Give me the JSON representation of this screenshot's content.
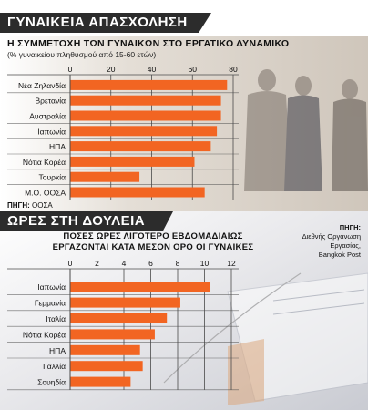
{
  "colors": {
    "bar": "#f26522",
    "banner": "#2c2c2c",
    "grid": "#4a4a4a",
    "text": "#111111"
  },
  "section1": {
    "banner": "ΓΥΝΑΙΚΕΙΑ ΑΠΑΣΧΟΛΗΣΗ",
    "title": "Η ΣΥΜΜΕΤΟΧΗ ΤΩΝ ΓΥΝΑΙΚΩΝ ΣΤΟ ΕΡΓΑΤΙΚΟ ΔΥΝΑΜΙΚΟ",
    "subtitle": "(% γυναικείου πληθυσμού από 15-60 ετών)",
    "source_label": "ΠΗΓΗ:",
    "source_text": " ΟΟΣΑ"
  },
  "section2": {
    "banner": "ΩΡΕΣ ΣΤΗ ΔΟΥΛΕΙΑ",
    "title_line1": "ΠΟΣΕΣ ΩΡΕΣ ΛΙΓΟΤΕΡΟ ΕΒΔΟΜΑΔΙΑΙΩΣ",
    "title_line2": "ΕΡΓΑΖΟΝΤΑΙ ΚΑΤΑ ΜΕΣΟΝ ΟΡΟ ΟΙ ΓΥΝΑΙΚΕΣ",
    "source_label": "ΠΗΓΗ:",
    "source_line1": "Διεθνής Οργάνωση Εργασίας,",
    "source_line2": "Bangkok Post"
  },
  "chart_data": [
    {
      "type": "bar",
      "orientation": "horizontal",
      "categories": [
        "Νέα Ζηλανδία",
        "Βρετανία",
        "Αυστραλία",
        "Ιαπωνία",
        "ΗΠΑ",
        "Νότια Κορέα",
        "Τουρκία",
        "Μ.Ο. ΟΟΣΑ"
      ],
      "values": [
        77,
        74,
        74,
        72,
        69,
        61,
        34,
        66
      ],
      "xticks": [
        0,
        20,
        40,
        60,
        80
      ],
      "xlim": [
        0,
        80
      ],
      "grid": true
    },
    {
      "type": "bar",
      "orientation": "horizontal",
      "categories": [
        "Ιαπωνία",
        "Γερμανία",
        "Ιταλία",
        "Νότια Κορέα",
        "ΗΠΑ",
        "Γαλλία",
        "Σουηδία"
      ],
      "values": [
        10.4,
        8.2,
        7.2,
        6.3,
        5.2,
        5.4,
        4.5
      ],
      "xticks": [
        0,
        2,
        4,
        6,
        8,
        10,
        12
      ],
      "xlim": [
        0,
        12
      ],
      "grid": true
    }
  ]
}
